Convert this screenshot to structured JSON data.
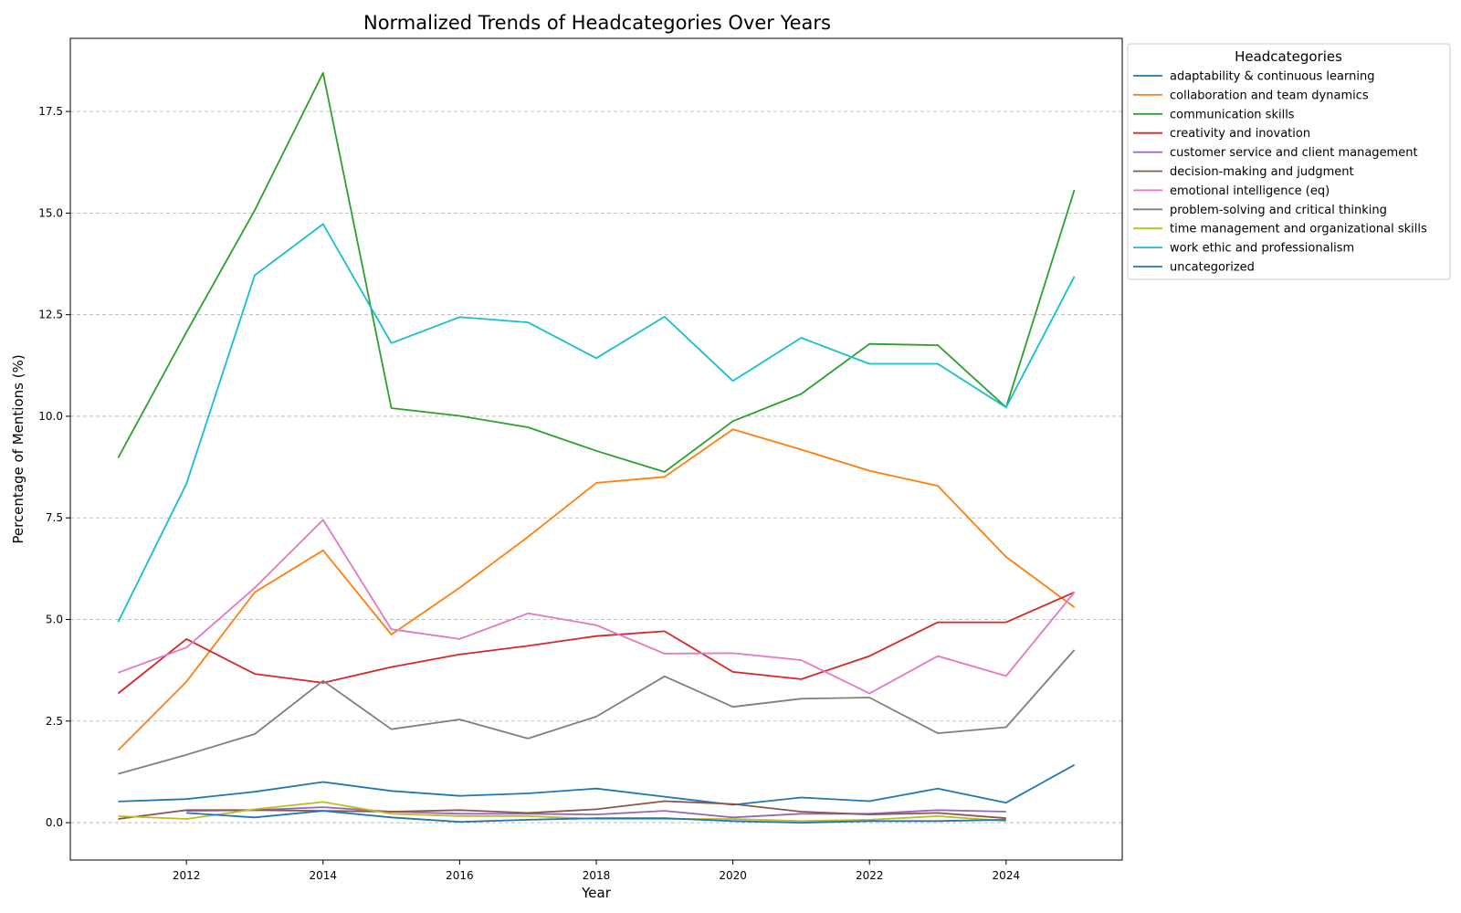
{
  "chart_data": {
    "type": "line",
    "title": "Normalized Trends of Headcategories Over Years",
    "xlabel": "Year",
    "ylabel": "Percentage of Mentions (%)",
    "xlim": [
      2010.3,
      2025.7
    ],
    "ylim": [
      -0.92,
      19.3
    ],
    "x_ticks": [
      2012,
      2014,
      2016,
      2018,
      2020,
      2022,
      2024
    ],
    "y_ticks": [
      0.0,
      2.5,
      5.0,
      7.5,
      10.0,
      12.5,
      15.0,
      17.5
    ],
    "x_tick_labels": [
      "2012",
      "2014",
      "2016",
      "2018",
      "2020",
      "2022",
      "2024"
    ],
    "y_tick_labels": [
      "0.0",
      "2.5",
      "5.0",
      "7.5",
      "10.0",
      "12.5",
      "15.0",
      "17.5"
    ],
    "grid": "y-dashed",
    "legend": {
      "title": "Headcategories",
      "placement": "outside-right"
    },
    "series": [
      {
        "name": "adaptability & continuous learning",
        "color": "#1f77b4",
        "x": [
          2011,
          2012,
          2013,
          2014,
          2015,
          2016,
          2017,
          2018,
          2019,
          2020,
          2021,
          2022,
          2023,
          2024,
          2025
        ],
        "y": [
          0.52,
          0.58,
          0.76,
          1.0,
          0.78,
          0.66,
          0.72,
          0.84,
          0.64,
          0.44,
          0.62,
          0.53,
          0.84,
          0.49,
          1.42
        ]
      },
      {
        "name": "collaboration and team dynamics",
        "color": "#ff7f0e",
        "x": [
          2011,
          2012,
          2013,
          2014,
          2015,
          2016,
          2017,
          2018,
          2019,
          2020,
          2021,
          2022,
          2023,
          2024,
          2025
        ],
        "y": [
          1.78,
          3.47,
          5.67,
          6.7,
          4.63,
          5.78,
          7.03,
          8.36,
          8.51,
          9.68,
          9.18,
          8.66,
          8.29,
          6.54,
          5.3
        ]
      },
      {
        "name": "communication skills",
        "color": "#2ca02c",
        "x": [
          2011,
          2012,
          2013,
          2014,
          2015,
          2016,
          2017,
          2018,
          2019,
          2020,
          2021,
          2022,
          2023,
          2024,
          2025
        ],
        "y": [
          8.98,
          12.07,
          15.07,
          18.45,
          10.2,
          10.01,
          9.73,
          9.15,
          8.63,
          9.88,
          10.55,
          11.78,
          11.75,
          10.22,
          15.57
        ]
      },
      {
        "name": "creativity and inovation",
        "color": "#d62728",
        "x": [
          2011,
          2012,
          2013,
          2014,
          2015,
          2016,
          2017,
          2018,
          2019,
          2020,
          2021,
          2022,
          2023,
          2024,
          2025
        ],
        "y": [
          3.18,
          4.52,
          3.66,
          3.44,
          3.83,
          4.14,
          4.35,
          4.59,
          4.71,
          3.71,
          3.53,
          4.1,
          4.93,
          4.93,
          5.67
        ]
      },
      {
        "name": "customer service and client management",
        "color": "#9467bd",
        "x": [
          2012,
          2013,
          2014,
          2015,
          2016,
          2017,
          2018,
          2019,
          2020,
          2021,
          2022,
          2023,
          2024
        ],
        "y": [
          0.29,
          0.31,
          0.38,
          0.27,
          0.22,
          0.22,
          0.2,
          0.29,
          0.13,
          0.22,
          0.22,
          0.31,
          0.27
        ]
      },
      {
        "name": "decision-making and judgment",
        "color": "#8c564b",
        "x": [
          2011,
          2012,
          2013,
          2014,
          2015,
          2016,
          2017,
          2018,
          2019,
          2020,
          2021,
          2022,
          2023,
          2024
        ],
        "y": [
          0.09,
          0.31,
          0.31,
          0.29,
          0.27,
          0.31,
          0.24,
          0.33,
          0.53,
          0.46,
          0.27,
          0.2,
          0.24,
          0.11
        ]
      },
      {
        "name": "emotional intelligence (eq)",
        "color": "#e377c2",
        "x": [
          2011,
          2012,
          2013,
          2014,
          2015,
          2016,
          2017,
          2018,
          2019,
          2020,
          2021,
          2022,
          2023,
          2024,
          2025
        ],
        "y": [
          3.69,
          4.31,
          5.78,
          7.45,
          4.76,
          4.52,
          5.15,
          4.86,
          4.16,
          4.17,
          4.0,
          3.18,
          4.1,
          3.61,
          5.67
        ]
      },
      {
        "name": "problem-solving and critical thinking",
        "color": "#7f7f7f",
        "x": [
          2011,
          2012,
          2013,
          2014,
          2015,
          2016,
          2017,
          2018,
          2019,
          2020,
          2021,
          2022,
          2023,
          2024,
          2025
        ],
        "y": [
          1.2,
          1.67,
          2.18,
          3.49,
          2.3,
          2.54,
          2.07,
          2.61,
          3.6,
          2.85,
          3.05,
          3.08,
          2.2,
          2.35,
          4.25
        ]
      },
      {
        "name": "time management and organizational skills",
        "color": "#bcbd22",
        "x": [
          2011,
          2012,
          2013,
          2014,
          2015,
          2016,
          2017,
          2018,
          2019,
          2020,
          2021,
          2022,
          2023,
          2024
        ],
        "y": [
          0.16,
          0.09,
          0.33,
          0.51,
          0.22,
          0.16,
          0.16,
          0.09,
          0.09,
          0.09,
          0.04,
          0.07,
          0.16,
          0.04
        ]
      },
      {
        "name": "work ethic and professionalism",
        "color": "#17becf",
        "x": [
          2011,
          2012,
          2013,
          2014,
          2015,
          2016,
          2017,
          2018,
          2019,
          2020,
          2021,
          2022,
          2023,
          2024,
          2025
        ],
        "y": [
          4.94,
          8.34,
          13.47,
          14.73,
          11.8,
          12.44,
          12.31,
          11.43,
          12.45,
          10.87,
          11.93,
          11.29,
          11.29,
          10.22,
          13.44
        ]
      },
      {
        "name": "uncategorized",
        "color": "#1f77b4",
        "x": [
          2012,
          2013,
          2014,
          2015,
          2016,
          2017,
          2018,
          2019,
          2020,
          2021,
          2022,
          2023,
          2024
        ],
        "y": [
          0.24,
          0.13,
          0.29,
          0.13,
          0.02,
          0.07,
          0.11,
          0.11,
          0.04,
          0.0,
          0.04,
          0.04,
          0.07
        ]
      }
    ]
  }
}
